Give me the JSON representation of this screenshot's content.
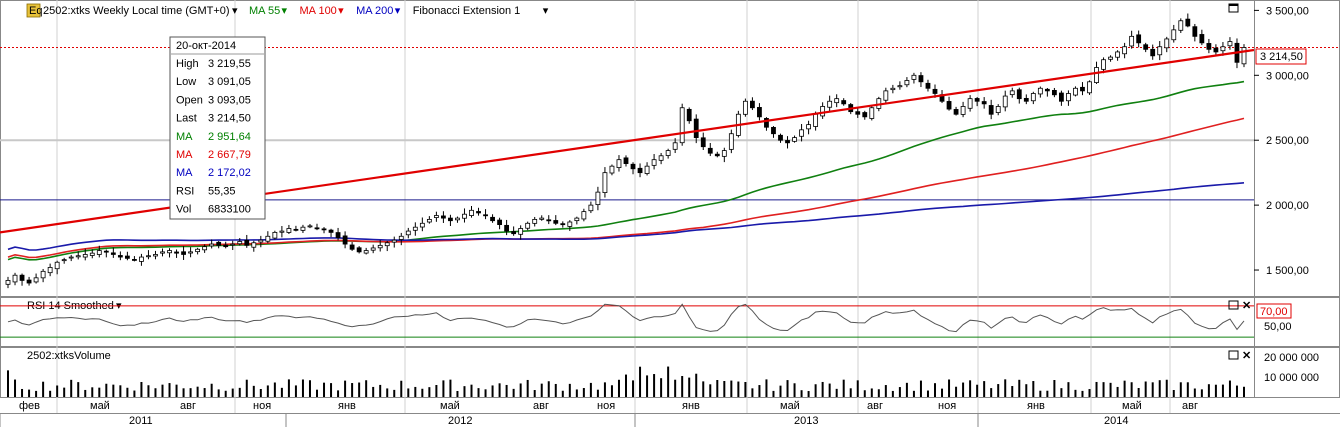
{
  "header": {
    "symbol_badge": "Eq",
    "title": "2502:xtks Weekly Local time (GMT+0)",
    "indicators": [
      {
        "label": "MA 55",
        "color": "#008000"
      },
      {
        "label": "MA 100",
        "color": "#e00000"
      },
      {
        "label": "MA 200",
        "color": "#0000c0"
      },
      {
        "label": "Fibonacci Extension 1",
        "color": "#000000"
      }
    ]
  },
  "tooltip": {
    "date": "20-окт-2014",
    "rows": [
      {
        "label": "High",
        "value": "3 219,55",
        "color": "#000000"
      },
      {
        "label": "Low",
        "value": "3 091,05",
        "color": "#000000"
      },
      {
        "label": "Open",
        "value": "3 093,05",
        "color": "#000000"
      },
      {
        "label": "Last",
        "value": "3 214,50",
        "color": "#000000"
      },
      {
        "label": "MA",
        "value": "2 951,64",
        "color": "#008000"
      },
      {
        "label": "MA",
        "value": "2 667,79",
        "color": "#e00000"
      },
      {
        "label": "MA",
        "value": "2 172,02",
        "color": "#0000c0"
      },
      {
        "label": "RSI",
        "value": "55,35",
        "color": "#000000"
      },
      {
        "label": "Vol",
        "value": "6833100",
        "color": "#000000"
      }
    ]
  },
  "last_price_label": "3 214,50",
  "rsi_panel": {
    "title": "RSI 14 Smoothed",
    "level_label": "70,00",
    "tick_labels": [
      "50,00"
    ]
  },
  "volume_panel": {
    "title": "2502:xtksVolume",
    "tick_labels": [
      "20 000 000",
      "10 000 000"
    ]
  },
  "price_axis": {
    "tick_labels": [
      "3 500,00",
      "3 000,00",
      "2 500,00",
      "2 000,00",
      "1 500,00"
    ]
  },
  "time_axis": {
    "months": [
      "фев",
      "май",
      "авг",
      "ноя",
      "янв",
      "май",
      "авг",
      "ноя",
      "янв",
      "май",
      "авг",
      "ноя",
      "янв",
      "май",
      "авг"
    ],
    "years": [
      "2011",
      "2012",
      "2013",
      "2014"
    ]
  },
  "chart_data": {
    "type": "candlestick",
    "symbol": "2502:xtks",
    "interval": "Weekly",
    "y_range": [
      1300,
      3580
    ],
    "rsi_range": [
      20,
      80
    ],
    "rsi_overbought": 70,
    "volume_range": [
      0,
      25000000
    ],
    "fib_line": {
      "start": 1790,
      "end": 3195
    },
    "hline_blue": 2040,
    "hline_gray": 2500,
    "hline_red_dotted": 3214.5,
    "weekly_closes_approx": [
      1420,
      1460,
      1420,
      1400,
      1440,
      1490,
      1520,
      1560,
      1580,
      1600,
      1610,
      1620,
      1630,
      1650,
      1640,
      1620,
      1600,
      1590,
      1580,
      1600,
      1610,
      1620,
      1640,
      1650,
      1630,
      1620,
      1640,
      1660,
      1680,
      1700,
      1690,
      1680,
      1700,
      1720,
      1690,
      1710,
      1730,
      1760,
      1790,
      1800,
      1820,
      1810,
      1830,
      1840,
      1820,
      1810,
      1790,
      1750,
      1700,
      1660,
      1640,
      1650,
      1670,
      1690,
      1710,
      1730,
      1760,
      1800,
      1830,
      1860,
      1890,
      1920,
      1900,
      1880,
      1900,
      1930,
      1960,
      1940,
      1920,
      1880,
      1850,
      1800,
      1780,
      1820,
      1860,
      1890,
      1900,
      1880,
      1860,
      1850,
      1870,
      1900,
      1950,
      2000,
      2100,
      2250,
      2300,
      2350,
      2320,
      2280,
      2250,
      2300,
      2350,
      2380,
      2420,
      2480,
      2750,
      2650,
      2520,
      2450,
      2400,
      2380,
      2420,
      2550,
      2700,
      2800,
      2750,
      2680,
      2600,
      2550,
      2500,
      2480,
      2520,
      2580,
      2620,
      2700,
      2760,
      2800,
      2820,
      2780,
      2720,
      2700,
      2680,
      2750,
      2820,
      2880,
      2900,
      2920,
      2960,
      3000,
      2950,
      2900,
      2860,
      2800,
      2740,
      2700,
      2760,
      2820,
      2800,
      2780,
      2700,
      2760,
      2840,
      2880,
      2820,
      2800,
      2860,
      2900,
      2880,
      2850,
      2800,
      2860,
      2900,
      2880,
      2950,
      3060,
      3120,
      3140,
      3180,
      3220,
      3300,
      3250,
      3200,
      3150,
      3220,
      3280,
      3350,
      3420,
      3380,
      3300,
      3250,
      3200,
      3180,
      3220,
      3260,
      3100,
      3214
    ],
    "ma55_end": 2951.64,
    "ma100_end": 2667.79,
    "ma200_end": 2172.02
  }
}
